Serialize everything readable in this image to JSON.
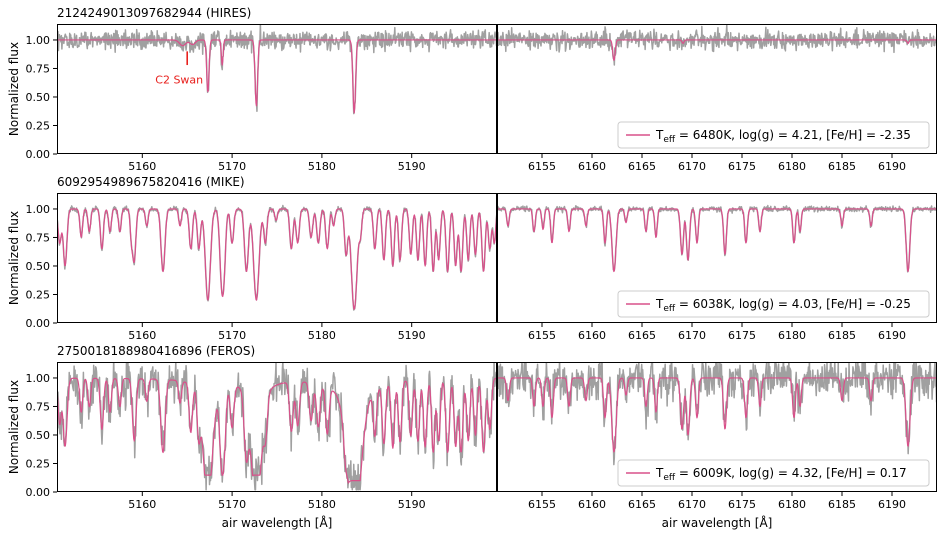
{
  "chart_data": {
    "type": "line",
    "ylabel": "Normalized flux",
    "xlabel": "air wavelength [Å]",
    "ylim": [
      0.0,
      1.14
    ],
    "yticks": [
      0.0,
      0.25,
      0.5,
      0.75,
      1.0
    ],
    "ytick_labels": [
      "0.00",
      "0.25",
      "0.50",
      "0.75",
      "1.00"
    ],
    "grid": false,
    "legend_position": "bottom-right",
    "colors": {
      "observed": "#a0a0a0",
      "model": "#d9508a"
    },
    "left_panel": {
      "xlim": [
        5150.5,
        5199.5
      ],
      "xticks": [
        5160,
        5170,
        5180,
        5190
      ],
      "xtick_labels": [
        "5160",
        "5170",
        "5180",
        "5190"
      ]
    },
    "right_panel": {
      "xlim": [
        6150.5,
        6194.5
      ],
      "xticks": [
        6155,
        6160,
        6165,
        6170,
        6175,
        6180,
        6185,
        6190
      ],
      "xtick_labels": [
        "6155",
        "6160",
        "6165",
        "6170",
        "6175",
        "6180",
        "6185",
        "6190"
      ]
    },
    "rows": [
      {
        "title": "2124249013097682944 (HIRES)",
        "legend": {
          "prefix": "T",
          "sub": "eff",
          "rest": " = 6480K, log(g) = 4.21, [Fe/H] = -2.35"
        },
        "noise": 0.04,
        "annotation": {
          "text": "C2 Swan",
          "x": 5165.0,
          "color": "#e8211e"
        },
        "left_lines": [
          {
            "x": 5167.3,
            "depth": 0.46,
            "w": 0.13
          },
          {
            "x": 5168.9,
            "depth": 0.22,
            "w": 0.1
          },
          {
            "x": 5172.7,
            "depth": 0.58,
            "w": 0.14
          },
          {
            "x": 5183.6,
            "depth": 0.64,
            "w": 0.15
          },
          {
            "x": 5164.5,
            "depth": 0.05,
            "w": 0.35
          },
          {
            "x": 5165.6,
            "depth": 0.04,
            "w": 0.3
          }
        ],
        "right_lines": [
          {
            "x": 6162.2,
            "depth": 0.18,
            "w": 0.12
          },
          {
            "x": 6169.1,
            "depth": 0.03,
            "w": 0.1
          },
          {
            "x": 6191.6,
            "depth": 0.03,
            "w": 0.1
          }
        ]
      },
      {
        "title": "6092954989675820416 (MIKE)",
        "legend": {
          "prefix": "T",
          "sub": "eff",
          "rest": " = 6038K, log(g) = 4.03, [Fe/H] = -0.25"
        },
        "noise": 0.012,
        "left_lines": [
          {
            "x": 5150.8,
            "depth": 0.3,
            "w": 0.18
          },
          {
            "x": 5151.4,
            "depth": 0.5,
            "w": 0.2
          },
          {
            "x": 5153.2,
            "depth": 0.25,
            "w": 0.15
          },
          {
            "x": 5154.1,
            "depth": 0.2,
            "w": 0.15
          },
          {
            "x": 5155.5,
            "depth": 0.35,
            "w": 0.17
          },
          {
            "x": 5156.4,
            "depth": 0.2,
            "w": 0.15
          },
          {
            "x": 5157.5,
            "depth": 0.2,
            "w": 0.15
          },
          {
            "x": 5158.8,
            "depth": 0.25,
            "w": 0.15
          },
          {
            "x": 5159.1,
            "depth": 0.45,
            "w": 0.18
          },
          {
            "x": 5160.5,
            "depth": 0.15,
            "w": 0.15
          },
          {
            "x": 5162.3,
            "depth": 0.55,
            "w": 0.22
          },
          {
            "x": 5164.2,
            "depth": 0.15,
            "w": 0.15
          },
          {
            "x": 5165.4,
            "depth": 0.35,
            "w": 0.18
          },
          {
            "x": 5166.3,
            "depth": 0.35,
            "w": 0.18
          },
          {
            "x": 5167.3,
            "depth": 0.8,
            "w": 0.28
          },
          {
            "x": 5168.9,
            "depth": 0.6,
            "w": 0.24
          },
          {
            "x": 5169.0,
            "depth": 0.45,
            "w": 0.22
          },
          {
            "x": 5170.0,
            "depth": 0.3,
            "w": 0.18
          },
          {
            "x": 5171.6,
            "depth": 0.55,
            "w": 0.22
          },
          {
            "x": 5172.7,
            "depth": 0.8,
            "w": 0.3
          },
          {
            "x": 5173.7,
            "depth": 0.3,
            "w": 0.18
          },
          {
            "x": 5174.9,
            "depth": 0.1,
            "w": 0.15
          },
          {
            "x": 5176.6,
            "depth": 0.35,
            "w": 0.18
          },
          {
            "x": 5177.3,
            "depth": 0.3,
            "w": 0.18
          },
          {
            "x": 5178.8,
            "depth": 0.25,
            "w": 0.18
          },
          {
            "x": 5179.6,
            "depth": 0.3,
            "w": 0.18
          },
          {
            "x": 5180.6,
            "depth": 0.35,
            "w": 0.18
          },
          {
            "x": 5181.3,
            "depth": 0.15,
            "w": 0.15
          },
          {
            "x": 5182.7,
            "depth": 0.4,
            "w": 0.18
          },
          {
            "x": 5183.6,
            "depth": 0.88,
            "w": 0.32
          },
          {
            "x": 5184.3,
            "depth": 0.2,
            "w": 0.15
          },
          {
            "x": 5185.9,
            "depth": 0.35,
            "w": 0.17
          },
          {
            "x": 5186.9,
            "depth": 0.45,
            "w": 0.17
          },
          {
            "x": 5187.9,
            "depth": 0.5,
            "w": 0.17
          },
          {
            "x": 5188.7,
            "depth": 0.45,
            "w": 0.17
          },
          {
            "x": 5189.9,
            "depth": 0.4,
            "w": 0.17
          },
          {
            "x": 5190.7,
            "depth": 0.45,
            "w": 0.17
          },
          {
            "x": 5191.5,
            "depth": 0.5,
            "w": 0.17
          },
          {
            "x": 5192.4,
            "depth": 0.55,
            "w": 0.17
          },
          {
            "x": 5193.0,
            "depth": 0.45,
            "w": 0.17
          },
          {
            "x": 5194.0,
            "depth": 0.55,
            "w": 0.18
          },
          {
            "x": 5194.9,
            "depth": 0.5,
            "w": 0.17
          },
          {
            "x": 5195.5,
            "depth": 0.55,
            "w": 0.18
          },
          {
            "x": 5196.3,
            "depth": 0.45,
            "w": 0.17
          },
          {
            "x": 5197.1,
            "depth": 0.4,
            "w": 0.17
          },
          {
            "x": 5198.0,
            "depth": 0.55,
            "w": 0.18
          },
          {
            "x": 5198.7,
            "depth": 0.35,
            "w": 0.17
          },
          {
            "x": 5199.2,
            "depth": 0.3,
            "w": 0.15
          }
        ],
        "right_lines": [
          {
            "x": 6151.6,
            "depth": 0.15,
            "w": 0.12
          },
          {
            "x": 6154.2,
            "depth": 0.2,
            "w": 0.12
          },
          {
            "x": 6155.1,
            "depth": 0.18,
            "w": 0.12
          },
          {
            "x": 6156.0,
            "depth": 0.3,
            "w": 0.13
          },
          {
            "x": 6157.7,
            "depth": 0.2,
            "w": 0.12
          },
          {
            "x": 6159.4,
            "depth": 0.15,
            "w": 0.12
          },
          {
            "x": 6161.3,
            "depth": 0.3,
            "w": 0.13
          },
          {
            "x": 6162.2,
            "depth": 0.55,
            "w": 0.2
          },
          {
            "x": 6163.4,
            "depth": 0.12,
            "w": 0.12
          },
          {
            "x": 6165.4,
            "depth": 0.2,
            "w": 0.12
          },
          {
            "x": 6166.4,
            "depth": 0.25,
            "w": 0.12
          },
          {
            "x": 6169.0,
            "depth": 0.4,
            "w": 0.15
          },
          {
            "x": 6169.6,
            "depth": 0.45,
            "w": 0.15
          },
          {
            "x": 6170.5,
            "depth": 0.3,
            "w": 0.13
          },
          {
            "x": 6173.3,
            "depth": 0.4,
            "w": 0.14
          },
          {
            "x": 6175.4,
            "depth": 0.3,
            "w": 0.13
          },
          {
            "x": 6176.8,
            "depth": 0.2,
            "w": 0.12
          },
          {
            "x": 6180.2,
            "depth": 0.3,
            "w": 0.13
          },
          {
            "x": 6180.8,
            "depth": 0.2,
            "w": 0.12
          },
          {
            "x": 6185.0,
            "depth": 0.15,
            "w": 0.12
          },
          {
            "x": 6187.9,
            "depth": 0.15,
            "w": 0.12
          },
          {
            "x": 6191.6,
            "depth": 0.55,
            "w": 0.18
          }
        ]
      },
      {
        "title": "2750018188980416896 (FEROS)",
        "legend": {
          "prefix": "T",
          "sub": "eff",
          "rest": " = 6009K, log(g) = 4.32, [Fe/H] = 0.17"
        },
        "noise": 0.085,
        "left_lines": [
          {
            "x": 5150.8,
            "depth": 0.4,
            "w": 0.18
          },
          {
            "x": 5151.4,
            "depth": 0.6,
            "w": 0.22
          },
          {
            "x": 5153.2,
            "depth": 0.3,
            "w": 0.16
          },
          {
            "x": 5154.1,
            "depth": 0.25,
            "w": 0.16
          },
          {
            "x": 5155.5,
            "depth": 0.45,
            "w": 0.18
          },
          {
            "x": 5156.4,
            "depth": 0.3,
            "w": 0.16
          },
          {
            "x": 5157.5,
            "depth": 0.25,
            "w": 0.16
          },
          {
            "x": 5159.1,
            "depth": 0.55,
            "w": 0.2
          },
          {
            "x": 5160.5,
            "depth": 0.2,
            "w": 0.16
          },
          {
            "x": 5162.3,
            "depth": 0.65,
            "w": 0.24
          },
          {
            "x": 5164.2,
            "depth": 0.2,
            "w": 0.16
          },
          {
            "x": 5165.4,
            "depth": 0.45,
            "w": 0.18
          },
          {
            "x": 5166.3,
            "depth": 0.45,
            "w": 0.18
          },
          {
            "x": 5167.3,
            "depth": 0.85,
            "w": 0.5,
            "wing": 0.25
          },
          {
            "x": 5168.9,
            "depth": 0.7,
            "w": 0.26
          },
          {
            "x": 5169.0,
            "depth": 0.5,
            "w": 0.24
          },
          {
            "x": 5170.0,
            "depth": 0.4,
            "w": 0.2
          },
          {
            "x": 5171.6,
            "depth": 0.65,
            "w": 0.24
          },
          {
            "x": 5172.7,
            "depth": 0.85,
            "w": 0.55,
            "wing": 0.3
          },
          {
            "x": 5173.7,
            "depth": 0.4,
            "w": 0.2
          },
          {
            "x": 5176.6,
            "depth": 0.45,
            "w": 0.2
          },
          {
            "x": 5177.3,
            "depth": 0.4,
            "w": 0.2
          },
          {
            "x": 5178.8,
            "depth": 0.35,
            "w": 0.2
          },
          {
            "x": 5179.6,
            "depth": 0.4,
            "w": 0.2
          },
          {
            "x": 5180.6,
            "depth": 0.45,
            "w": 0.2
          },
          {
            "x": 5182.7,
            "depth": 0.45,
            "w": 0.2
          },
          {
            "x": 5183.6,
            "depth": 0.9,
            "w": 0.7,
            "wing": 0.45
          },
          {
            "x": 5185.9,
            "depth": 0.45,
            "w": 0.18
          },
          {
            "x": 5186.9,
            "depth": 0.55,
            "w": 0.18
          },
          {
            "x": 5187.9,
            "depth": 0.6,
            "w": 0.18
          },
          {
            "x": 5188.7,
            "depth": 0.55,
            "w": 0.18
          },
          {
            "x": 5189.9,
            "depth": 0.5,
            "w": 0.18
          },
          {
            "x": 5190.7,
            "depth": 0.55,
            "w": 0.18
          },
          {
            "x": 5191.5,
            "depth": 0.6,
            "w": 0.18
          },
          {
            "x": 5192.4,
            "depth": 0.65,
            "w": 0.18
          },
          {
            "x": 5193.0,
            "depth": 0.55,
            "w": 0.18
          },
          {
            "x": 5194.0,
            "depth": 0.65,
            "w": 0.2
          },
          {
            "x": 5194.9,
            "depth": 0.6,
            "w": 0.18
          },
          {
            "x": 5195.5,
            "depth": 0.65,
            "w": 0.2
          },
          {
            "x": 5196.3,
            "depth": 0.55,
            "w": 0.18
          },
          {
            "x": 5197.1,
            "depth": 0.5,
            "w": 0.18
          },
          {
            "x": 5198.0,
            "depth": 0.65,
            "w": 0.2
          },
          {
            "x": 5198.7,
            "depth": 0.45,
            "w": 0.18
          }
        ],
        "right_lines": [
          {
            "x": 6151.6,
            "depth": 0.2,
            "w": 0.13
          },
          {
            "x": 6154.2,
            "depth": 0.25,
            "w": 0.13
          },
          {
            "x": 6155.1,
            "depth": 0.25,
            "w": 0.13
          },
          {
            "x": 6156.0,
            "depth": 0.35,
            "w": 0.14
          },
          {
            "x": 6157.7,
            "depth": 0.25,
            "w": 0.13
          },
          {
            "x": 6159.4,
            "depth": 0.2,
            "w": 0.13
          },
          {
            "x": 6161.3,
            "depth": 0.35,
            "w": 0.14
          },
          {
            "x": 6162.2,
            "depth": 0.65,
            "w": 0.22
          },
          {
            "x": 6163.4,
            "depth": 0.15,
            "w": 0.13
          },
          {
            "x": 6165.4,
            "depth": 0.25,
            "w": 0.13
          },
          {
            "x": 6166.4,
            "depth": 0.3,
            "w": 0.13
          },
          {
            "x": 6169.0,
            "depth": 0.45,
            "w": 0.16
          },
          {
            "x": 6169.6,
            "depth": 0.5,
            "w": 0.16
          },
          {
            "x": 6170.5,
            "depth": 0.35,
            "w": 0.14
          },
          {
            "x": 6173.3,
            "depth": 0.45,
            "w": 0.15
          },
          {
            "x": 6175.4,
            "depth": 0.35,
            "w": 0.14
          },
          {
            "x": 6176.8,
            "depth": 0.25,
            "w": 0.13
          },
          {
            "x": 6180.2,
            "depth": 0.35,
            "w": 0.14
          },
          {
            "x": 6180.8,
            "depth": 0.25,
            "w": 0.13
          },
          {
            "x": 6185.0,
            "depth": 0.2,
            "w": 0.13
          },
          {
            "x": 6187.9,
            "depth": 0.2,
            "w": 0.13
          },
          {
            "x": 6191.6,
            "depth": 0.6,
            "w": 0.2
          }
        ]
      }
    ]
  }
}
